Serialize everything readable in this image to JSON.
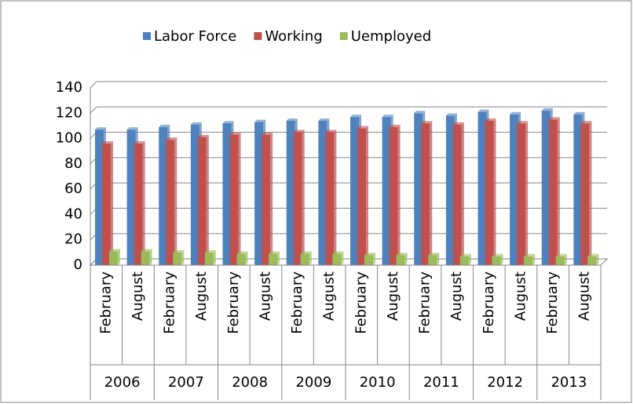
{
  "chart_data": {
    "type": "bar",
    "categories": [
      "February",
      "August",
      "February",
      "August",
      "February",
      "August",
      "February",
      "August",
      "February",
      "August",
      "February",
      "August",
      "February",
      "August",
      "February",
      "August"
    ],
    "category_groups": [
      "2006",
      "2007",
      "2008",
      "2009",
      "2010",
      "2011",
      "2012",
      "2013"
    ],
    "series": [
      {
        "name": "Labor Force",
        "color": "#4f81bd",
        "values": [
          107,
          107,
          109,
          111,
          112,
          113,
          114,
          114,
          117,
          117,
          120,
          118,
          121,
          119,
          122,
          119
        ]
      },
      {
        "name": "Working",
        "color": "#c0504d",
        "values": [
          96,
          96,
          99,
          101,
          103,
          103,
          105,
          105,
          108,
          109,
          112,
          111,
          114,
          112,
          115,
          112
        ]
      },
      {
        "name": "Uemployed",
        "color": "#9bbb59",
        "values": [
          11,
          11,
          10,
          10,
          9,
          9,
          9,
          9,
          8,
          8,
          8,
          7,
          7,
          7,
          7,
          7
        ]
      }
    ],
    "ylim": [
      0,
      140
    ],
    "yticks": [
      0,
      20,
      40,
      60,
      80,
      100,
      120,
      140
    ],
    "grid": true,
    "legend": "top"
  }
}
